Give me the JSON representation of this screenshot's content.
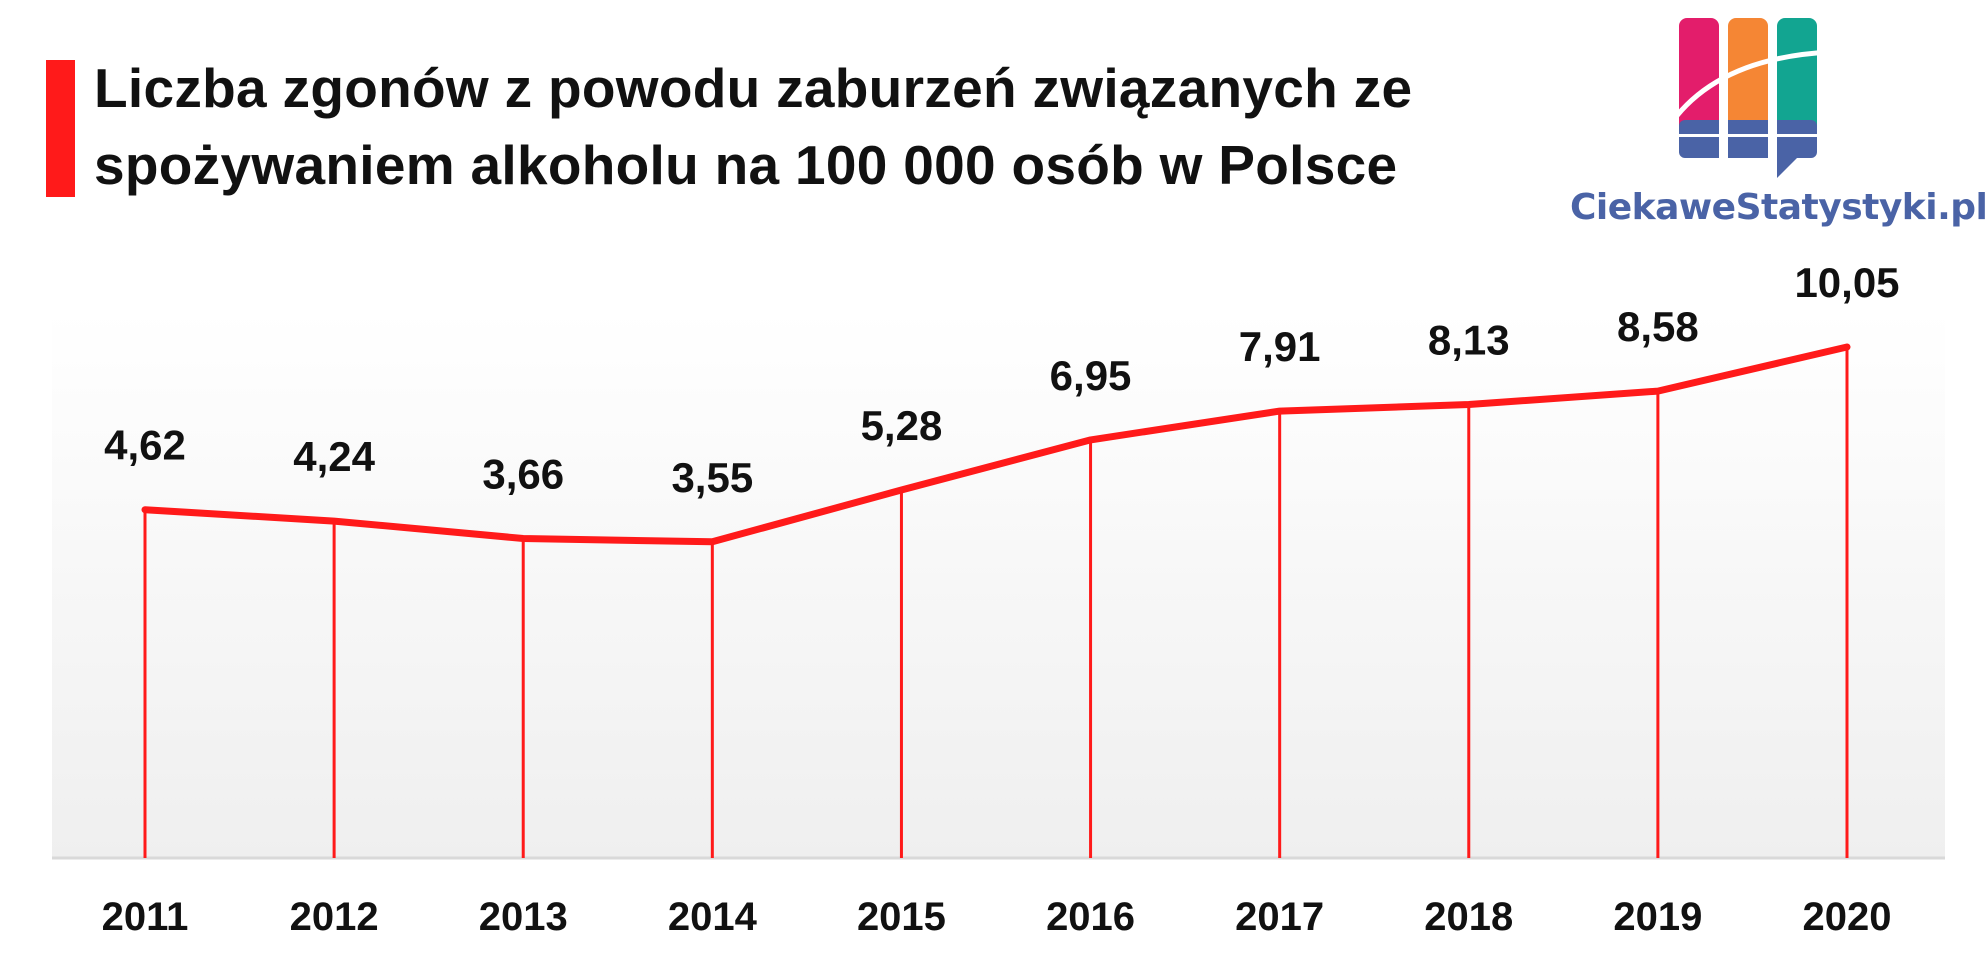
{
  "header": {
    "title_line1": "Liczba zgonów z powodu zaburzeń związanych ze",
    "title_line2": "spożywaniem alkoholu na 100 000 osób w Polsce",
    "accent_color": "#ff1a1a"
  },
  "logo": {
    "text": "CiekaweStatystyki.pl",
    "text_color": "#4a63a6",
    "colors": [
      "#e31d6b",
      "#f58634",
      "#12a591",
      "#4a63a6"
    ]
  },
  "chart_data": {
    "type": "line",
    "title": "Liczba zgonów z powodu zaburzeń związanych ze spożywaniem alkoholu na 100 000 osób w Polsce",
    "categories": [
      "2011",
      "2012",
      "2013",
      "2014",
      "2015",
      "2016",
      "2017",
      "2018",
      "2019",
      "2020"
    ],
    "values": [
      4.62,
      4.24,
      3.66,
      3.55,
      5.28,
      6.95,
      7.91,
      8.13,
      8.58,
      10.05
    ],
    "value_labels": [
      "4,62",
      "4,24",
      "3,66",
      "3,55",
      "5,28",
      "6,95",
      "7,91",
      "8,13",
      "8,58",
      "10,05"
    ],
    "xlabel": "",
    "ylabel": "",
    "ylim": [
      -7,
      10.05
    ],
    "grid": false,
    "drop_lines": true,
    "line_color": "#ff1a1a"
  }
}
